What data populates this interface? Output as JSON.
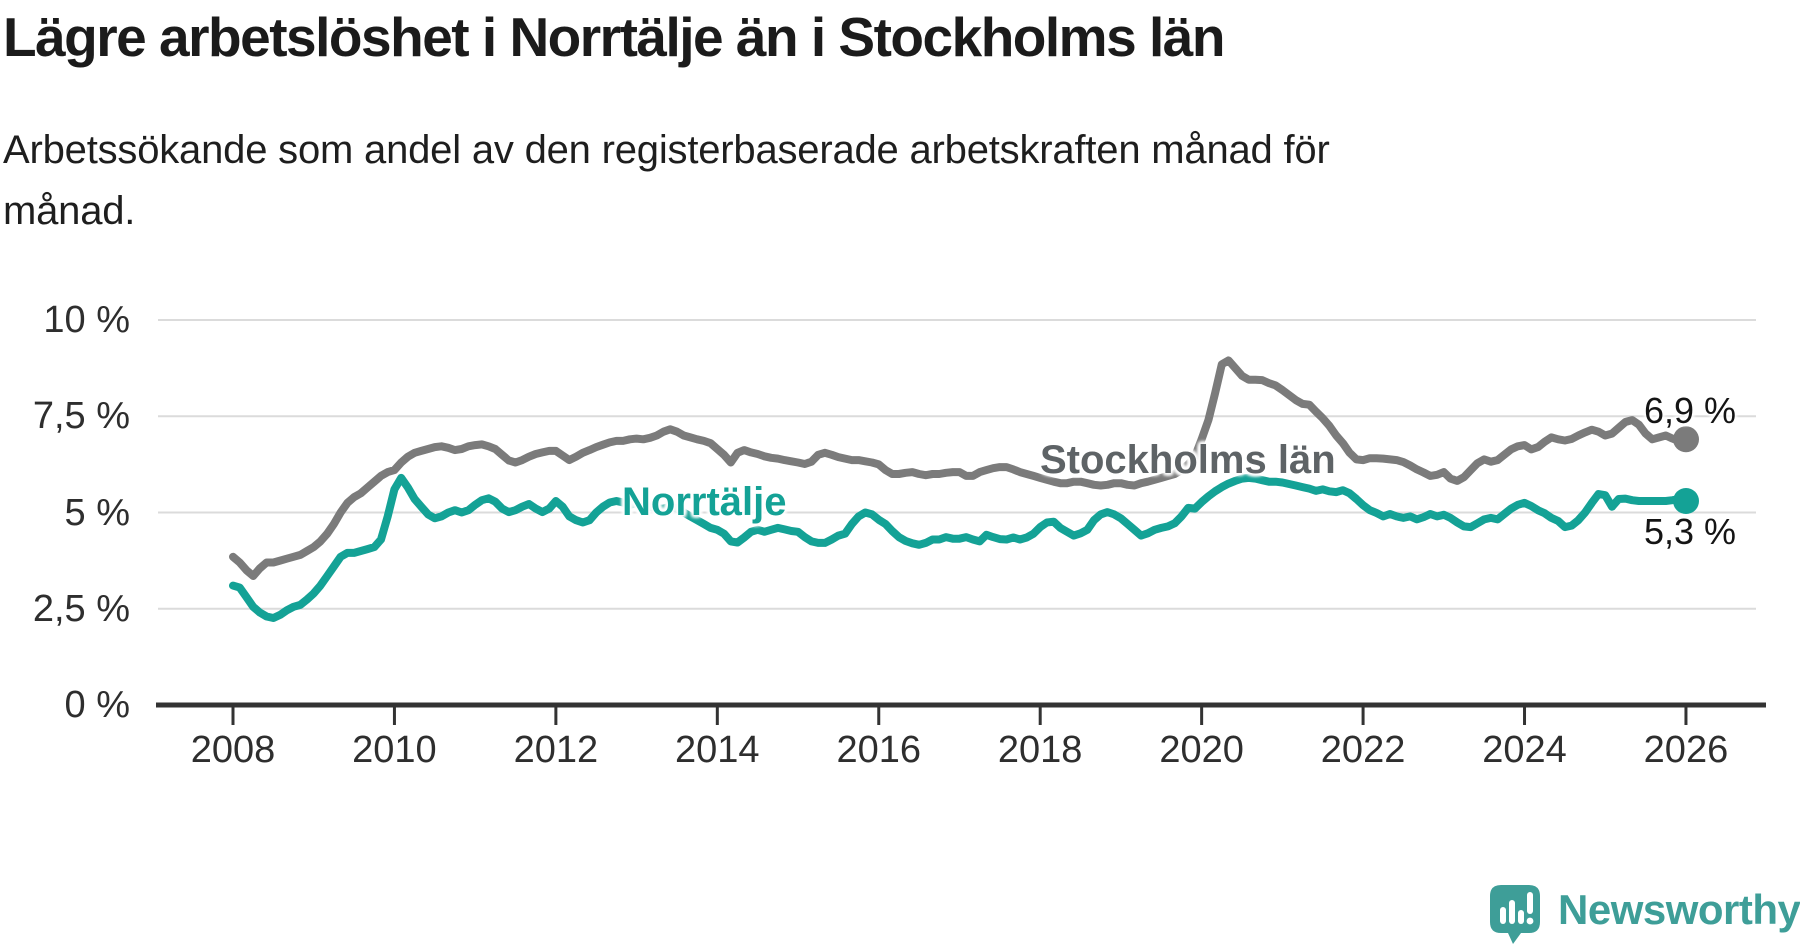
{
  "header": {
    "title": "Lägre arbetslöshet i Norrtälje än i Stockholms län",
    "subtitle": "Arbetssökande som andel av den registerbaserade arbetskraften månad för månad."
  },
  "logo": {
    "text": "Newsworthy",
    "color": "#3E9E98"
  },
  "chart_data": {
    "type": "line",
    "title": "Lägre arbetslöshet i Norrtälje än i Stockholms län",
    "xlabel": "",
    "ylabel": "Arbetssökande som andel av den registerbaserade arbetskraften",
    "x_start": {
      "year": 2008,
      "month": 1
    },
    "x_interval": "monthly",
    "x_end": {
      "year": 2026,
      "month": 1
    },
    "ylim": [
      0,
      10
    ],
    "grid": "horizontal",
    "legend_position": "inline-labels",
    "colors": {
      "gridline": "#DBDBDB",
      "axis": "#333333",
      "axis_text": "#2E2E2E",
      "value_text": "#141414"
    },
    "y_axis": {
      "tick_values": [
        10,
        7.5,
        5,
        2.5,
        0
      ],
      "labels": [
        "10 %",
        "7,5 %",
        "5 %",
        "2,5 %",
        "0 %"
      ]
    },
    "x_axis": {
      "tick_years": [
        2008,
        2010,
        2012,
        2014,
        2016,
        2018,
        2020,
        2022,
        2024,
        2026
      ],
      "labels": [
        "2008",
        "2010",
        "2012",
        "2014",
        "2016",
        "2018",
        "2020",
        "2022",
        "2024",
        "2026"
      ]
    },
    "series": [
      {
        "name": "Stockholms län",
        "color": "#7B7B7B",
        "label_color": "#5E6366",
        "end_label": "6,9 %",
        "end_value": 6.9,
        "values": [
          3.85,
          3.7,
          3.5,
          3.35,
          3.55,
          3.7,
          3.7,
          3.75,
          3.8,
          3.85,
          3.9,
          4.0,
          4.1,
          4.25,
          4.45,
          4.7,
          5.0,
          5.25,
          5.4,
          5.5,
          5.65,
          5.8,
          5.95,
          6.05,
          6.1,
          6.3,
          6.45,
          6.55,
          6.6,
          6.65,
          6.7,
          6.72,
          6.68,
          6.62,
          6.65,
          6.72,
          6.75,
          6.77,
          6.72,
          6.65,
          6.5,
          6.35,
          6.3,
          6.36,
          6.45,
          6.52,
          6.56,
          6.6,
          6.6,
          6.48,
          6.36,
          6.45,
          6.55,
          6.62,
          6.7,
          6.76,
          6.82,
          6.86,
          6.86,
          6.9,
          6.92,
          6.9,
          6.94,
          7.0,
          7.1,
          7.16,
          7.1,
          7.0,
          6.95,
          6.9,
          6.86,
          6.8,
          6.65,
          6.5,
          6.3,
          6.55,
          6.62,
          6.56,
          6.52,
          6.46,
          6.42,
          6.4,
          6.36,
          6.33,
          6.3,
          6.26,
          6.32,
          6.5,
          6.55,
          6.5,
          6.44,
          6.4,
          6.36,
          6.36,
          6.33,
          6.3,
          6.25,
          6.1,
          6.0,
          6.0,
          6.03,
          6.05,
          6.0,
          5.97,
          6.0,
          6.0,
          6.03,
          6.05,
          6.05,
          5.95,
          5.95,
          6.05,
          6.1,
          6.15,
          6.18,
          6.18,
          6.12,
          6.05,
          6.0,
          5.95,
          5.9,
          5.85,
          5.8,
          5.76,
          5.76,
          5.8,
          5.8,
          5.76,
          5.72,
          5.7,
          5.72,
          5.76,
          5.76,
          5.72,
          5.7,
          5.76,
          5.8,
          5.85,
          5.9,
          5.95,
          6.0,
          6.1,
          6.25,
          6.45,
          6.9,
          7.4,
          8.1,
          8.85,
          8.95,
          8.75,
          8.55,
          8.45,
          8.45,
          8.44,
          8.36,
          8.3,
          8.18,
          8.05,
          7.92,
          7.82,
          7.8,
          7.62,
          7.45,
          7.25,
          7.0,
          6.8,
          6.55,
          6.38,
          6.36,
          6.41,
          6.41,
          6.4,
          6.38,
          6.36,
          6.31,
          6.22,
          6.12,
          6.04,
          5.95,
          5.98,
          6.05,
          5.88,
          5.82,
          5.92,
          6.1,
          6.28,
          6.38,
          6.32,
          6.36,
          6.5,
          6.64,
          6.72,
          6.75,
          6.64,
          6.7,
          6.84,
          6.95,
          6.9,
          6.87,
          6.91,
          7.0,
          7.08,
          7.15,
          7.1,
          7.0,
          7.05,
          7.2,
          7.35,
          7.4,
          7.28,
          7.05,
          6.9,
          6.95,
          7.0,
          6.92,
          6.85,
          6.9
        ]
      },
      {
        "name": "Norrtälje",
        "color": "#14A296",
        "label_color": "#14A296",
        "end_label": "5,3 %",
        "end_value": 5.3,
        "values": [
          3.1,
          3.05,
          2.8,
          2.55,
          2.4,
          2.3,
          2.26,
          2.34,
          2.46,
          2.55,
          2.6,
          2.74,
          2.9,
          3.1,
          3.35,
          3.6,
          3.85,
          3.95,
          3.95,
          4.0,
          4.05,
          4.1,
          4.3,
          4.9,
          5.6,
          5.9,
          5.65,
          5.35,
          5.15,
          4.95,
          4.85,
          4.9,
          5.0,
          5.06,
          5.0,
          5.06,
          5.2,
          5.32,
          5.37,
          5.28,
          5.1,
          5.01,
          5.06,
          5.15,
          5.22,
          5.1,
          5.01,
          5.1,
          5.3,
          5.15,
          4.9,
          4.8,
          4.74,
          4.8,
          5.0,
          5.15,
          5.26,
          5.3,
          5.26,
          5.2,
          5.25,
          5.2,
          5.15,
          5.1,
          5.1,
          5.15,
          5.1,
          5.0,
          4.9,
          4.8,
          4.7,
          4.6,
          4.55,
          4.45,
          4.25,
          4.22,
          4.35,
          4.5,
          4.55,
          4.5,
          4.55,
          4.6,
          4.56,
          4.52,
          4.5,
          4.36,
          4.25,
          4.21,
          4.21,
          4.3,
          4.4,
          4.45,
          4.7,
          4.9,
          5.0,
          4.95,
          4.81,
          4.7,
          4.52,
          4.36,
          4.26,
          4.2,
          4.16,
          4.21,
          4.3,
          4.3,
          4.36,
          4.32,
          4.32,
          4.36,
          4.3,
          4.25,
          4.42,
          4.36,
          4.31,
          4.3,
          4.35,
          4.3,
          4.35,
          4.45,
          4.62,
          4.74,
          4.76,
          4.6,
          4.5,
          4.4,
          4.46,
          4.55,
          4.8,
          4.95,
          5.01,
          4.95,
          4.85,
          4.7,
          4.55,
          4.4,
          4.46,
          4.55,
          4.6,
          4.64,
          4.72,
          4.9,
          5.12,
          5.1,
          5.27,
          5.42,
          5.55,
          5.66,
          5.75,
          5.82,
          5.88,
          5.9,
          5.88,
          5.84,
          5.8,
          5.8,
          5.78,
          5.74,
          5.7,
          5.66,
          5.62,
          5.56,
          5.6,
          5.55,
          5.53,
          5.58,
          5.5,
          5.35,
          5.19,
          5.06,
          4.99,
          4.9,
          4.96,
          4.9,
          4.86,
          4.9,
          4.82,
          4.88,
          4.96,
          4.9,
          4.94,
          4.86,
          4.74,
          4.64,
          4.62,
          4.72,
          4.82,
          4.86,
          4.82,
          4.96,
          5.1,
          5.2,
          5.25,
          5.17,
          5.06,
          4.98,
          4.86,
          4.78,
          4.62,
          4.66,
          4.8,
          5.0,
          5.25,
          5.48,
          5.45,
          5.15,
          5.35,
          5.36,
          5.32,
          5.3,
          5.3,
          5.3,
          5.3,
          5.3,
          5.32,
          5.35,
          5.3
        ]
      }
    ]
  }
}
